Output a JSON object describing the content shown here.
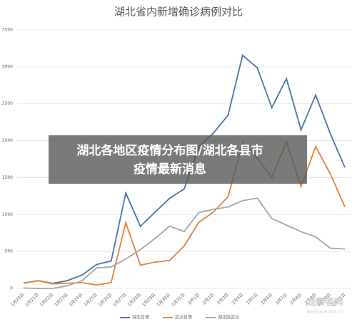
{
  "chart_data": {
    "type": "line",
    "title": "湖北省内新增确诊病例对比",
    "categories": [
      "1月20日",
      "1月21日",
      "1月22日",
      "1月23日",
      "1月24日",
      "1月25日",
      "1月26日",
      "1月27日",
      "1月28日",
      "1月29日",
      "1月30日",
      "1月31日",
      "2月1日",
      "2月2日",
      "2月3日",
      "2月4日",
      "2月5日",
      "2月6日",
      "2月7日",
      "2月8日",
      "2月9日",
      "2月10日",
      "2月11日"
    ],
    "series": [
      {
        "name": "湖北日增",
        "color": "#4a72b0",
        "values": [
          72,
          105,
          69,
          105,
          180,
          323,
          371,
          1291,
          840,
          1032,
          1220,
          1347,
          1921,
          2103,
          2345,
          3156,
          2987,
          2447,
          2841,
          2147,
          2618,
          2097,
          1638
        ]
      },
      {
        "name": "武汉日增",
        "color": "#e0823a",
        "values": [
          70,
          105,
          62,
          70,
          77,
          46,
          80,
          892,
          315,
          356,
          378,
          576,
          894,
          1033,
          1242,
          1967,
          1766,
          1501,
          1985,
          1379,
          1920,
          1552,
          1104
        ]
      },
      {
        "name": "湖北除武汉",
        "color": "#a5a5a5",
        "values": [
          5,
          0,
          0,
          35,
          103,
          277,
          291,
          399,
          525,
          676,
          842,
          771,
          1027,
          1070,
          1103,
          1189,
          1221,
          946,
          856,
          768,
          698,
          545,
          534
        ]
      }
    ],
    "ylim": [
      0,
      3500
    ],
    "yticks": [
      0,
      500,
      1000,
      1500,
      2000,
      2500,
      3000,
      3500
    ],
    "grid": true
  },
  "overlay": {
    "lines": [
      "湖北各地区疫情分布图/湖北各县市",
      "疫情最新消息"
    ]
  },
  "watermark": [
    "观察者网",
    "www.guancha.cn"
  ]
}
